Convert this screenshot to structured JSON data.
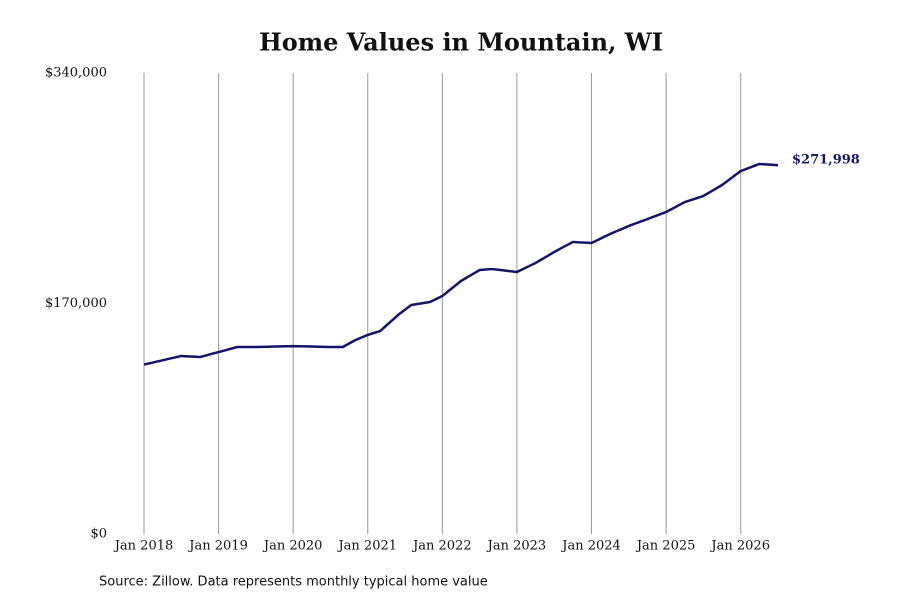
{
  "chart_data": {
    "type": "line",
    "title": "Home Values in Mountain, WI",
    "source": "Source: Zillow. Data represents monthly typical home value",
    "x": [
      "2018-01",
      "2018-02",
      "2018-03",
      "2018-04",
      "2018-05",
      "2018-06",
      "2018-07",
      "2018-08",
      "2018-09",
      "2018-10",
      "2018-11",
      "2018-12",
      "2019-01",
      "2019-02",
      "2019-03",
      "2019-04",
      "2019-05",
      "2019-06",
      "2019-07",
      "2019-08",
      "2019-09",
      "2019-10",
      "2019-11",
      "2019-12",
      "2020-01",
      "2020-02",
      "2020-03",
      "2020-04",
      "2020-05",
      "2020-06",
      "2020-07",
      "2020-08",
      "2020-09",
      "2020-10",
      "2020-11",
      "2020-12",
      "2021-01",
      "2021-02",
      "2021-03",
      "2021-04",
      "2021-05",
      "2021-06",
      "2021-07",
      "2021-08",
      "2021-09",
      "2021-10",
      "2021-11",
      "2021-12",
      "2022-01",
      "2022-02",
      "2022-03",
      "2022-04",
      "2022-05",
      "2022-06",
      "2022-07",
      "2022-08",
      "2022-09",
      "2022-10",
      "2022-11",
      "2022-12",
      "2023-01",
      "2023-02",
      "2023-03",
      "2023-04",
      "2023-05",
      "2023-06",
      "2023-07",
      "2023-08",
      "2023-09",
      "2023-10",
      "2023-11",
      "2023-12",
      "2024-01",
      "2024-02",
      "2024-03",
      "2024-04",
      "2024-05",
      "2024-06",
      "2024-07",
      "2024-08",
      "2024-09",
      "2024-10",
      "2024-11",
      "2024-12",
      "2025-01",
      "2025-02",
      "2025-03",
      "2025-04",
      "2025-05",
      "2025-06",
      "2025-07",
      "2025-08",
      "2025-09",
      "2025-10",
      "2025-11",
      "2025-12",
      "2026-01",
      "2026-02",
      "2026-03",
      "2026-04",
      "2026-05",
      "2026-06",
      "2026-07"
    ],
    "values": [
      125000,
      126000,
      127100,
      128100,
      129200,
      130200,
      131300,
      131000,
      130800,
      130500,
      131700,
      133000,
      134200,
      135400,
      136700,
      137900,
      137900,
      137900,
      137900,
      138000,
      138100,
      138300,
      138400,
      138500,
      138600,
      138500,
      138400,
      138300,
      138100,
      138000,
      137900,
      137900,
      137900,
      140500,
      143000,
      144900,
      146800,
      148300,
      149700,
      153800,
      157900,
      162000,
      165500,
      168900,
      169600,
      170400,
      171100,
      173300,
      175500,
      179200,
      182900,
      186600,
      189300,
      192000,
      194700,
      195100,
      195400,
      194900,
      194300,
      193800,
      193200,
      195400,
      197700,
      199900,
      202600,
      205300,
      208000,
      210500,
      212900,
      215400,
      215100,
      214900,
      214600,
      216800,
      219100,
      221300,
      223300,
      225200,
      227200,
      228900,
      230600,
      232300,
      234000,
      235800,
      237500,
      239900,
      242400,
      244800,
      246300,
      247800,
      249300,
      252000,
      254700,
      257400,
      260800,
      264300,
      267700,
      269400,
      271200,
      272900,
      272600,
      272300,
      271998
    ],
    "value_labels": [
      null,
      null,
      null,
      null,
      null,
      null,
      null,
      null,
      null,
      null,
      null,
      null,
      null,
      null,
      null,
      null,
      null,
      null,
      null,
      null,
      null,
      null,
      null,
      null,
      null,
      null,
      null,
      null,
      null,
      null,
      null,
      null,
      null,
      null,
      null,
      null,
      null,
      null,
      null,
      null,
      null,
      null,
      null,
      null,
      null,
      null,
      null,
      null,
      null,
      null,
      null,
      null,
      null,
      null,
      null,
      null,
      null,
      null,
      null,
      null,
      null,
      null,
      null,
      null,
      null,
      null,
      null,
      null,
      null,
      null,
      null,
      null,
      null,
      null,
      null,
      null,
      null,
      null,
      null,
      null,
      null,
      null,
      null,
      null,
      null,
      null,
      null,
      null,
      null,
      null,
      null,
      null,
      null,
      null,
      null,
      null,
      null,
      null,
      null,
      null,
      null,
      null,
      "$271,998"
    ],
    "color": "#14146b",
    "xlim": [
      "2018-01",
      "2026-07"
    ],
    "xticks": [
      {
        "value": "2018-01",
        "label": "Jan 2018"
      },
      {
        "value": "2019-01",
        "label": "Jan 2019"
      },
      {
        "value": "2020-01",
        "label": "Jan 2020"
      },
      {
        "value": "2021-01",
        "label": "Jan 2021"
      },
      {
        "value": "2022-01",
        "label": "Jan 2022"
      },
      {
        "value": "2023-01",
        "label": "Jan 2023"
      },
      {
        "value": "2024-01",
        "label": "Jan 2024"
      },
      {
        "value": "2025-01",
        "label": "Jan 2025"
      },
      {
        "value": "2026-01",
        "label": "Jan 2026"
      }
    ],
    "ylim": [
      0,
      340000
    ],
    "yticks": [
      {
        "value": 0,
        "label": "$0"
      },
      {
        "value": 170000,
        "label": "$170,000"
      },
      {
        "value": 340000,
        "label": "$340,000"
      }
    ],
    "grid": "x"
  }
}
